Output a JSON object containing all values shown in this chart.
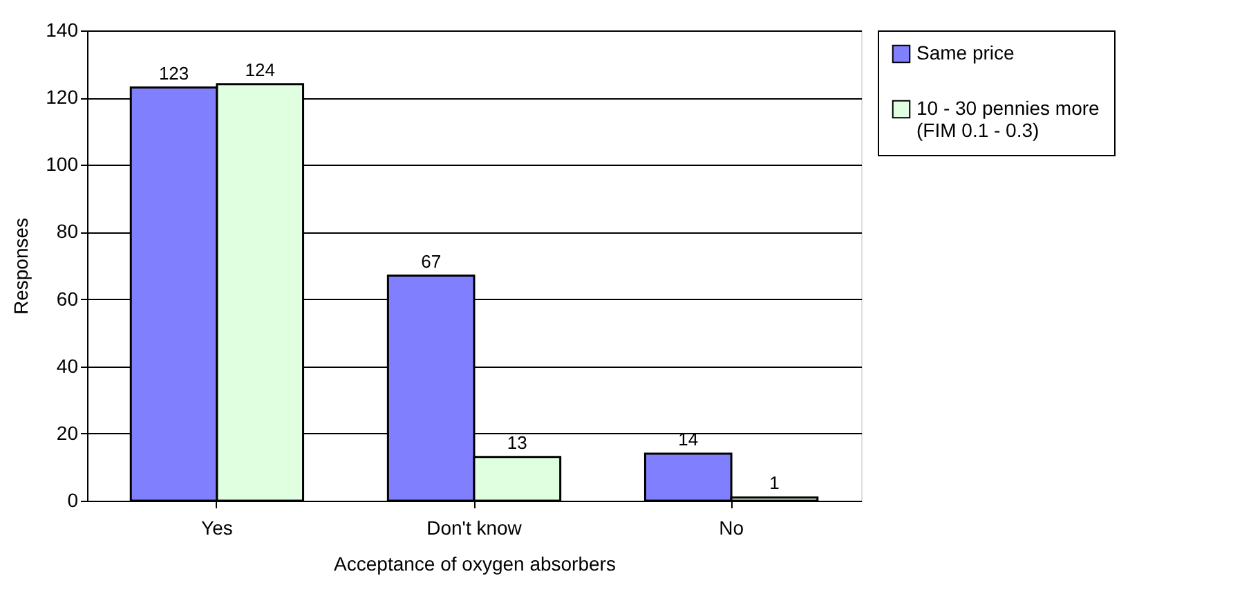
{
  "chart_data": {
    "type": "bar",
    "xlabel": "Acceptance of oxygen absorbers",
    "ylabel": "Responses",
    "categories": [
      "Yes",
      "Don't know",
      "No"
    ],
    "series": [
      {
        "name": "Same price",
        "color": "#8080ff",
        "values": [
          123,
          67,
          14
        ]
      },
      {
        "name": "10 - 30 pennies more\n(FIM  0.1 - 0.3)",
        "color": "#e0ffe0",
        "values": [
          124,
          13,
          1
        ]
      }
    ],
    "ylim": [
      0,
      140
    ],
    "yticks": [
      0,
      20,
      40,
      60,
      80,
      100,
      120,
      140
    ],
    "grid": "y",
    "legend": "right",
    "data_labels": true
  }
}
